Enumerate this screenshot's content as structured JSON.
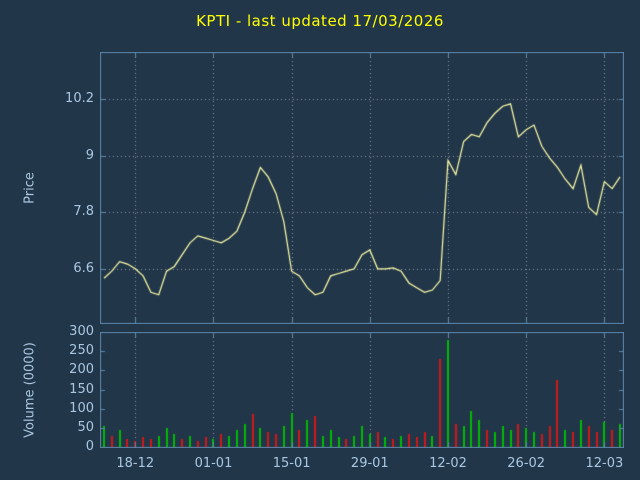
{
  "title": "KPTI - last updated 17/03/2026",
  "colors": {
    "background": "#223649",
    "title": "#ffff00",
    "tick_label": "#a9c7e0",
    "axis_label": "#a9c7e0",
    "border": "#5e87aa",
    "grid": "#8496a5",
    "price_line": "#ffffa8",
    "volume_up": "#00bb00",
    "volume_down": "#d01818"
  },
  "chart_data": [
    {
      "type": "line",
      "name": "price",
      "title": "KPTI - last updated 17/03/2026",
      "ylabel": "Price",
      "ylim": [
        5.45,
        11.2
      ],
      "y_ticks": [
        10.2,
        9,
        7.8,
        6.6
      ],
      "x_tick_labels": [
        "18-12",
        "01-01",
        "15-01",
        "29-01",
        "12-02",
        "26-02",
        "12-03"
      ],
      "x_tick_indices": [
        4,
        14,
        24,
        34,
        44,
        54,
        64
      ],
      "values": [
        6.4,
        6.55,
        6.75,
        6.7,
        6.6,
        6.45,
        6.1,
        6.05,
        6.55,
        6.65,
        6.9,
        7.15,
        7.3,
        7.25,
        7.2,
        7.15,
        7.25,
        7.4,
        7.8,
        8.3,
        8.75,
        8.55,
        8.2,
        7.6,
        6.55,
        6.45,
        6.2,
        6.05,
        6.1,
        6.45,
        6.5,
        6.55,
        6.6,
        6.9,
        7.0,
        6.6,
        6.6,
        6.62,
        6.55,
        6.3,
        6.2,
        6.1,
        6.15,
        6.35,
        8.9,
        8.6,
        9.3,
        9.45,
        9.4,
        9.7,
        9.9,
        10.05,
        10.1,
        9.4,
        9.55,
        9.65,
        9.2,
        8.95,
        8.75,
        8.5,
        8.3,
        8.8,
        7.9,
        7.75,
        8.45,
        8.3,
        8.55
      ]
    },
    {
      "type": "bar",
      "name": "volume",
      "ylabel": "Volume (0000)",
      "ylim": [
        0,
        300
      ],
      "y_ticks": [
        300,
        250,
        200,
        150,
        100,
        50,
        0
      ],
      "values": [
        55,
        30,
        45,
        20,
        15,
        25,
        20,
        30,
        50,
        35,
        20,
        30,
        15,
        25,
        20,
        35,
        30,
        45,
        60,
        85,
        50,
        40,
        35,
        55,
        90,
        45,
        70,
        80,
        30,
        45,
        25,
        20,
        30,
        55,
        35,
        40,
        25,
        20,
        30,
        35,
        25,
        40,
        30,
        230,
        280,
        60,
        55,
        95,
        70,
        45,
        40,
        55,
        45,
        60,
        50,
        40,
        35,
        55,
        175,
        45,
        40,
        70,
        55,
        40,
        65,
        45,
        60
      ],
      "colors": [
        "g",
        "r",
        "g",
        "r",
        "r",
        "r",
        "r",
        "g",
        "g",
        "g",
        "r",
        "g",
        "r",
        "r",
        "g",
        "r",
        "g",
        "g",
        "g",
        "r",
        "g",
        "r",
        "r",
        "g",
        "g",
        "r",
        "g",
        "r",
        "g",
        "g",
        "g",
        "r",
        "g",
        "g",
        "g",
        "r",
        "g",
        "r",
        "g",
        "r",
        "r",
        "r",
        "g",
        "r",
        "g",
        "r",
        "g",
        "g",
        "g",
        "r",
        "g",
        "g",
        "g",
        "r",
        "g",
        "g",
        "r",
        "r",
        "r",
        "g",
        "r",
        "g",
        "r",
        "r",
        "g",
        "r",
        "g"
      ]
    }
  ]
}
